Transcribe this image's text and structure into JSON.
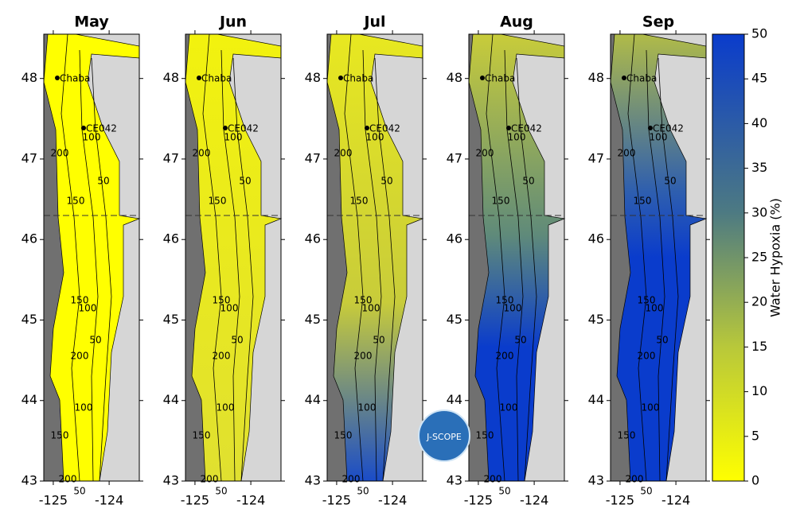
{
  "panels": [
    {
      "title": "May"
    },
    {
      "title": "Jun"
    },
    {
      "title": "Jul"
    },
    {
      "title": "Aug"
    },
    {
      "title": "Sep"
    }
  ],
  "axes": {
    "ylim": [
      43,
      48.55
    ],
    "yticks": [
      43,
      44,
      45,
      46,
      47,
      48
    ],
    "xlim": [
      -125.17,
      -123.46
    ],
    "xticks": [
      -125,
      -124
    ]
  },
  "stations": [
    "Chaba",
    "CE042"
  ],
  "contour_labels": [
    "50",
    "100",
    "150",
    "200",
    "100",
    "150",
    "200",
    "50",
    "100",
    "150",
    "200",
    "50"
  ],
  "colorbar": {
    "label": "Water Hypoxia (%)",
    "lim": [
      0,
      50
    ],
    "ticks": [
      0,
      5,
      10,
      15,
      20,
      25,
      30,
      35,
      40,
      45,
      50
    ]
  },
  "logo": {
    "text": "J-SCOPE"
  }
}
